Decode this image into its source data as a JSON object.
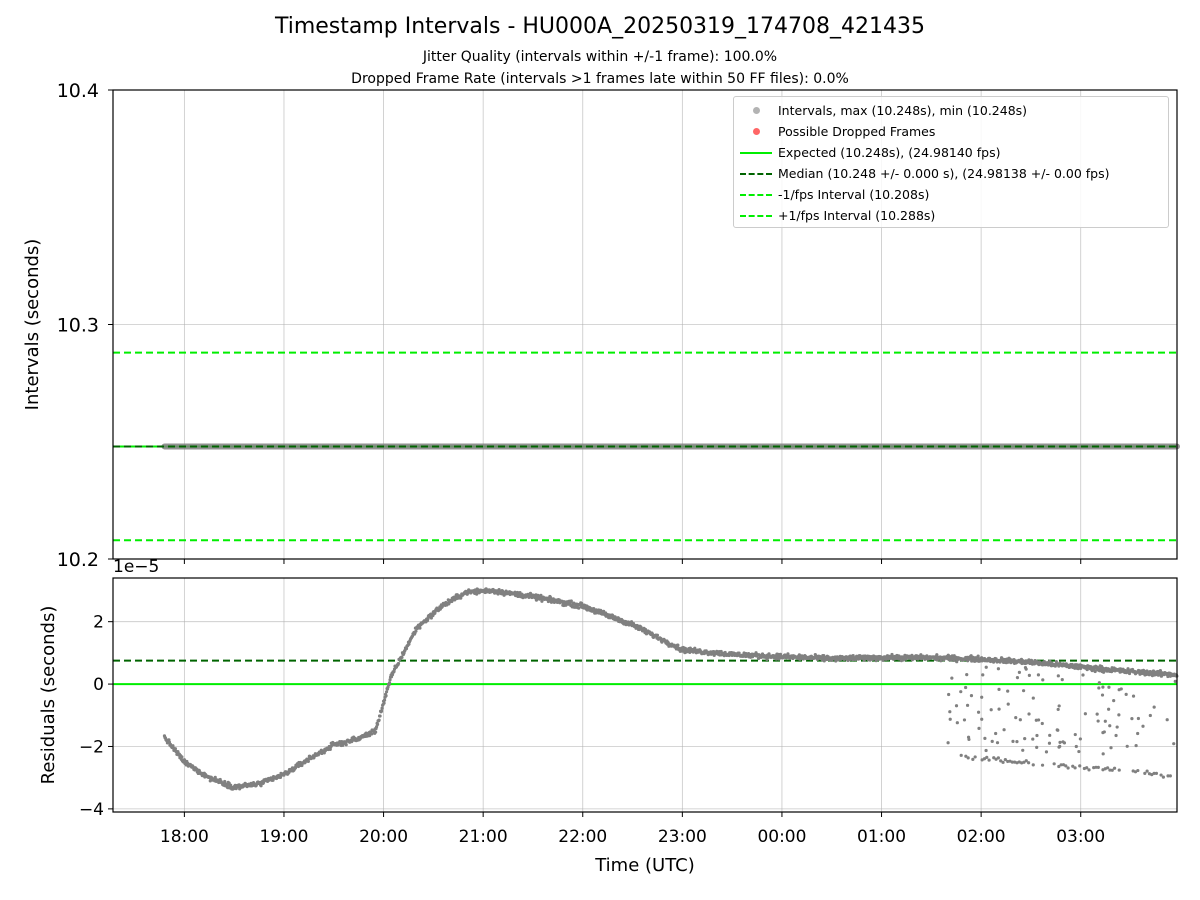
{
  "title": "Timestamp Intervals - HU000A_20250319_174708_421435",
  "subtitle1": "Jitter Quality (intervals within +/-1 frame): 100.0%",
  "subtitle2": "Dropped Frame Rate (intervals >1 frames late within 50 FF files): 0.0%",
  "legend": [
    {
      "label": "Intervals, max (10.248s), min (10.248s)",
      "kind": "dot",
      "color": "#808080"
    },
    {
      "label": "Possible Dropped Frames",
      "kind": "dot",
      "color": "#ff0000"
    },
    {
      "label": "Expected (10.248s), (24.98140 fps)",
      "kind": "solid",
      "color": "#00ee00"
    },
    {
      "label": "Median (10.248 +/- 0.000 s), (24.98138 +/- 0.00 fps)",
      "kind": "dashed",
      "color": "#006400"
    },
    {
      "label": "-1/fps Interval (10.208s)",
      "kind": "dashed",
      "color": "#00ee00"
    },
    {
      "label": "+1/fps Interval (10.288s)",
      "kind": "dashed",
      "color": "#00ee00"
    }
  ],
  "chart_data": [
    {
      "type": "scatter",
      "panel": "intervals",
      "ylabel": "Intervals (seconds)",
      "ylim": [
        10.2,
        10.4
      ],
      "yticks": [
        "10.2",
        "10.3",
        "10.4"
      ],
      "yticks_values": [
        10.2,
        10.3,
        10.4
      ],
      "xlim": [
        "17:17",
        "03:58"
      ],
      "grid": true,
      "legend_position": "top-right",
      "series": [
        {
          "name": "Intervals, max (10.248s), min (10.248s)",
          "x_range": [
            "17:48",
            "03:58"
          ],
          "value": 10.248,
          "color": "#808080"
        },
        {
          "name": "Expected (10.248s), (24.98140 fps)",
          "value": 10.248,
          "style": "solid",
          "color": "#00ee00"
        },
        {
          "name": "Median (10.248 +/- 0.000 s), (24.98138 +/- 0.00 fps)",
          "value": 10.248,
          "style": "dashed",
          "color": "#006400"
        },
        {
          "name": "-1/fps Interval (10.208s)",
          "value": 10.208,
          "style": "dashed",
          "color": "#00ee00"
        },
        {
          "name": "+1/fps Interval (10.288s)",
          "value": 10.288,
          "style": "dashed",
          "color": "#00ee00"
        }
      ]
    },
    {
      "type": "scatter",
      "panel": "residuals",
      "ylabel": "Residuals (seconds)",
      "xlabel": "Time (UTC)",
      "offset_label": "1e−5",
      "ylim": [
        -4.1,
        3.4
      ],
      "yticks": [
        "−4",
        "−2",
        "0",
        "2"
      ],
      "yticks_values": [
        -4,
        -2,
        0,
        2
      ],
      "xlim": [
        "17:17",
        "03:58"
      ],
      "xticks": [
        "18:00",
        "19:00",
        "20:00",
        "21:00",
        "22:00",
        "23:00",
        "00:00",
        "01:00",
        "02:00",
        "03:00"
      ],
      "grid": true,
      "reference_lines": [
        {
          "value": 0,
          "style": "solid",
          "color": "#00ee00"
        },
        {
          "value": 0.75,
          "style": "dashed",
          "color": "#006400"
        }
      ],
      "series": [
        {
          "name": "",
          "color": "#808080",
          "points_main": [
            [
              "17:48",
              -1.7
            ],
            [
              "18:00",
              -2.5
            ],
            [
              "18:15",
              -3.0
            ],
            [
              "18:30",
              -3.3
            ],
            [
              "18:45",
              -3.2
            ],
            [
              "19:00",
              -2.9
            ],
            [
              "19:15",
              -2.4
            ],
            [
              "19:30",
              -1.95
            ],
            [
              "19:45",
              -1.75
            ],
            [
              "19:55",
              -1.5
            ],
            [
              "20:05",
              0.3
            ],
            [
              "20:20",
              1.8
            ],
            [
              "20:35",
              2.5
            ],
            [
              "20:50",
              2.95
            ],
            [
              "21:05",
              3.0
            ],
            [
              "21:30",
              2.8
            ],
            [
              "22:00",
              2.5
            ],
            [
              "22:15",
              2.2
            ],
            [
              "22:30",
              1.9
            ],
            [
              "22:45",
              1.5
            ],
            [
              "23:00",
              1.1
            ],
            [
              "23:30",
              0.95
            ],
            [
              "00:00",
              0.88
            ],
            [
              "00:30",
              0.82
            ],
            [
              "01:00",
              0.85
            ],
            [
              "01:30",
              0.85
            ],
            [
              "02:00",
              0.8
            ],
            [
              "02:30",
              0.7
            ],
            [
              "03:00",
              0.55
            ],
            [
              "03:30",
              0.4
            ],
            [
              "03:58",
              0.3
            ]
          ],
          "points_lower_cluster": [
            [
              "01:48",
              -2.3
            ],
            [
              "02:15",
              -2.45
            ],
            [
              "02:40",
              -2.6
            ],
            [
              "03:10",
              -2.7
            ],
            [
              "03:40",
              -2.85
            ],
            [
              "03:55",
              -2.95
            ]
          ],
          "scattered_range": {
            "x_range": [
              "01:40",
              "03:58"
            ],
            "y_range": [
              -2.3,
              0.6
            ]
          }
        }
      ]
    }
  ]
}
